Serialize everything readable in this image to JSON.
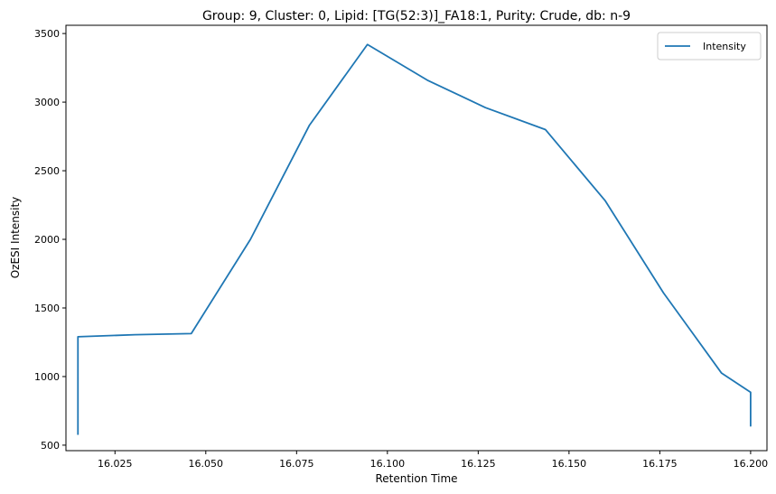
{
  "chart_data": {
    "type": "line",
    "title": "Group: 9, Cluster: 0, Lipid: [TG(52:3)]_FA18:1, Purity: Crude, db: n-9",
    "xlabel": "Retention Time",
    "ylabel": "OzESI Intensity",
    "xlim": [
      16.0115,
      16.2045
    ],
    "ylim": [
      460,
      3560
    ],
    "xticks": [
      16.025,
      16.05,
      16.075,
      16.1,
      16.125,
      16.15,
      16.175,
      16.2
    ],
    "xtick_labels": [
      "16.025",
      "16.050",
      "16.075",
      "16.100",
      "16.125",
      "16.150",
      "16.175",
      "16.200"
    ],
    "yticks": [
      500,
      1000,
      1500,
      2000,
      2500,
      3000,
      3500
    ],
    "ytick_labels": [
      "500",
      "1000",
      "1500",
      "2000",
      "2500",
      "3000",
      "3500"
    ],
    "grid": false,
    "legend": "top-right",
    "series": [
      {
        "name": "Intensity",
        "color": "#1f77b4",
        "x": [
          16.0148,
          16.0148,
          16.0148,
          16.0148,
          16.0148,
          16.0148,
          16.0148,
          16.0148,
          16.0148,
          16.0305,
          16.046,
          16.0623,
          16.0785,
          16.0945,
          16.111,
          16.127,
          16.1435,
          16.16,
          16.176,
          16.192,
          16.2,
          16.2,
          16.2,
          16.2,
          16.2,
          16.2
        ],
        "y": [
          575,
          1000,
          700,
          1180,
          740,
          1060,
          720,
          1200,
          1290,
          1305,
          1313,
          2000,
          2830,
          3420,
          3160,
          2960,
          2800,
          2280,
          1610,
          1025,
          885,
          640,
          880,
          700,
          860,
          760
        ]
      }
    ]
  }
}
